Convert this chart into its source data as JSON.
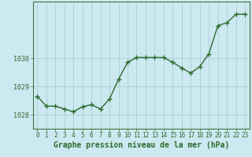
{
  "hours": [
    0,
    1,
    2,
    3,
    4,
    5,
    6,
    7,
    8,
    9,
    10,
    11,
    12,
    13,
    14,
    15,
    16,
    17,
    18,
    19,
    20,
    21,
    22,
    23
  ],
  "pressure": [
    1028.65,
    1028.3,
    1028.3,
    1028.2,
    1028.1,
    1028.28,
    1028.35,
    1028.2,
    1028.55,
    1029.25,
    1029.85,
    1030.02,
    1030.02,
    1030.02,
    1030.02,
    1029.85,
    1029.65,
    1029.47,
    1029.7,
    1030.15,
    1031.15,
    1031.25,
    1031.55,
    1031.55
  ],
  "line_color": "#2d6b2d",
  "marker": "+",
  "marker_size": 4,
  "linewidth": 1.0,
  "bg_color": "#cce8f0",
  "plot_bg_color": "#cce8f0",
  "grid_color": "#a8c8d0",
  "xlabel": "Graphe pression niveau de la mer (hPa)",
  "xlabel_color": "#2d6b2d",
  "xlabel_fontsize": 7,
  "ytick_labels": [
    "1028",
    "1029",
    "1030"
  ],
  "ytick_values": [
    1028,
    1029,
    1030
  ],
  "ylim": [
    1027.5,
    1032.0
  ],
  "xlim": [
    -0.5,
    23.5
  ],
  "xtick_fontsize": 5.5,
  "ytick_fontsize": 6,
  "tick_color": "#2d6b2d",
  "axis_color": "#2d6b2d"
}
